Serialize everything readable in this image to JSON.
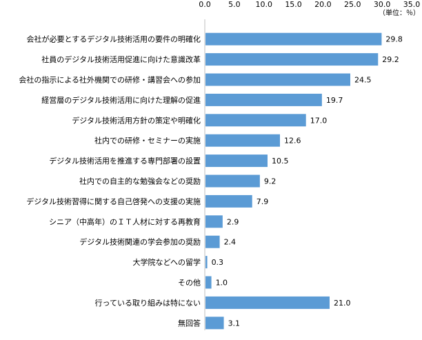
{
  "chart_data": {
    "type": "bar",
    "orientation": "horizontal",
    "categories": [
      "会社が必要とするデジタル技術活用の要件の明確化",
      "社員のデジタル技術活用促進に向けた意識改革",
      "会社の指示による社外機関での研修・講習会への参加",
      "経営層のデジタル技術活用に向けた理解の促進",
      "デジタル技術活用方針の策定や明確化",
      "社内での研修・セミナーの実施",
      "デジタル技術活用を推進する専門部署の設置",
      "社内での自主的な勉強会などの奨励",
      "デジタル技術習得に関する自己啓発への支援の実施",
      "シニア（中高年）のＩＴ人材に対する再教育",
      "デジタル技術関連の学会参加の奨励",
      "大学院などへの留学",
      "その他",
      "行っている取り組みは特にない",
      "無回答"
    ],
    "values": [
      29.8,
      29.2,
      24.5,
      19.7,
      17.0,
      12.6,
      10.5,
      9.2,
      7.9,
      2.9,
      2.4,
      0.3,
      1.0,
      21.0,
      3.1
    ],
    "value_labels": [
      "29.8",
      "29.2",
      "24.5",
      "19.7",
      "17.0",
      "12.6",
      "10.5",
      "9.2",
      "7.9",
      "2.9",
      "2.4",
      "0.3",
      "1.0",
      "21.0",
      "3.1"
    ],
    "x_ticks": [
      "0.0",
      "5.0",
      "10.0",
      "15.0",
      "20.0",
      "25.0",
      "30.0",
      "35.0"
    ],
    "xlim": [
      0,
      35
    ],
    "unit_note": "（単位：％）",
    "title": "",
    "xlabel": "",
    "ylabel": "",
    "grid": false,
    "bar_color": "#5B9BD5"
  }
}
